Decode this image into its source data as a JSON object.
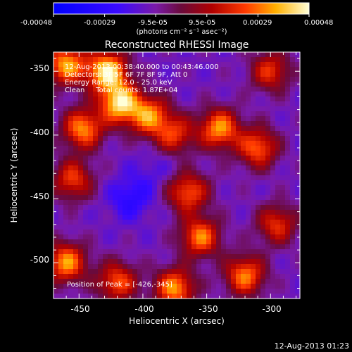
{
  "colorbar": {
    "ticks": [
      "-0.00048",
      "-0.00029",
      "-9.5e-05",
      "9.5e-05",
      "0.00029",
      "0.00048"
    ],
    "unit_label": "(photons cm⁻² s⁻¹ asec⁻²)",
    "range": [
      -0.00048,
      0.00048
    ]
  },
  "chart_data": {
    "type": "heatmap",
    "title": "Reconstructed RHESSI Image",
    "xlabel": "Heliocentric X (arcsec)",
    "ylabel": "Heliocentric Y (arcsec)",
    "xlim": [
      -470,
      -277
    ],
    "ylim": [
      -528,
      -335
    ],
    "x_ticks": [
      "-450",
      "-400",
      "-350",
      "-300"
    ],
    "y_ticks": [
      "-350",
      "-400",
      "-450",
      "-500"
    ],
    "annotations": {
      "time_range": "12-Aug-2013 00:38:40.000 to 00:43:46.000",
      "detectors": "Detectors: 3F 5F 6F 7F 8F 9F, Att 0",
      "energy": "Energy Range: 12.0 - 25.0 keV",
      "method": "Clean     Total counts: 1.87E+04",
      "peak": "Position of Peak = [-426,-345]"
    },
    "peak": [
      -426,
      -345
    ],
    "hot_spots": [
      {
        "x": -460,
        "y": -345,
        "v": 0.00035
      },
      {
        "x": -428,
        "y": -350,
        "v": 0.00045
      },
      {
        "x": -418,
        "y": -375,
        "v": 0.00042
      },
      {
        "x": -447,
        "y": -395,
        "v": 0.00032
      },
      {
        "x": -395,
        "y": -385,
        "v": 0.0003
      },
      {
        "x": -455,
        "y": -435,
        "v": 0.00022
      },
      {
        "x": -375,
        "y": -400,
        "v": 0.0002
      },
      {
        "x": -340,
        "y": -395,
        "v": 0.00033
      },
      {
        "x": -310,
        "y": -410,
        "v": 0.00027
      },
      {
        "x": -365,
        "y": -445,
        "v": 0.00025
      },
      {
        "x": -355,
        "y": -480,
        "v": 0.0003
      },
      {
        "x": -460,
        "y": -500,
        "v": 0.00033
      },
      {
        "x": -420,
        "y": -515,
        "v": 0.00025
      },
      {
        "x": -375,
        "y": -520,
        "v": 0.00033
      },
      {
        "x": -320,
        "y": -510,
        "v": 0.0003
      },
      {
        "x": -295,
        "y": -470,
        "v": 0.0002
      },
      {
        "x": -300,
        "y": -350,
        "v": 0.0002
      }
    ],
    "cold_spots": [
      {
        "x": -410,
        "y": -450,
        "v": -0.0003
      },
      {
        "x": -395,
        "y": -430,
        "v": -0.00018
      },
      {
        "x": -380,
        "y": -420,
        "v": -0.00015
      },
      {
        "x": -350,
        "y": -440,
        "v": -0.0001
      }
    ]
  },
  "footer": {
    "timestamp": "12-Aug-2013 01:23"
  },
  "colors": {
    "background": "#000000",
    "text": "#ffffff"
  }
}
